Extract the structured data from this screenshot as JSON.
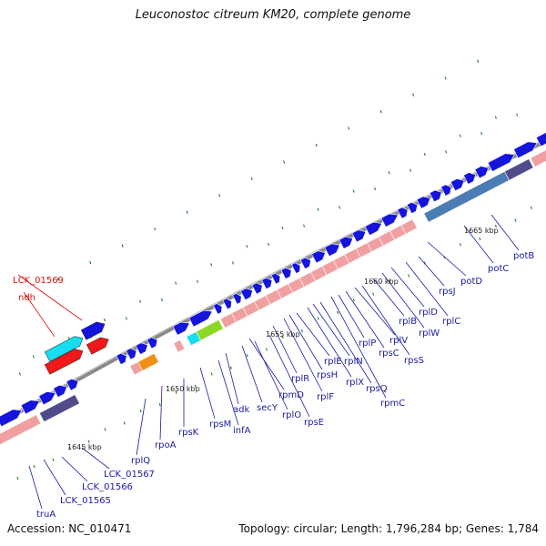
{
  "title": "Leuconostoc citreum KM20, complete genome",
  "accession": "Accession: NC_010471",
  "topology": "Topology: circular; Length: 1,796,284 bp; Genes: 1,784",
  "colors": {
    "backbone": "#8a8a8a",
    "forward_gene": "#1414dc",
    "reverse_gene": "#f0a0a0",
    "operon_dark": "#504c8c",
    "operon_blue": "#4c7cb4",
    "highlight_cyan": "#18dcf0",
    "highlight_red": "#f01818",
    "highlight_green": "#8cd828",
    "highlight_orange": "#f09018",
    "gc_tick": "#2e8b2e",
    "label_blue": "#1a1aa0",
    "label_red": "#dd1111"
  },
  "scale_labels": [
    "1645 kbp",
    "1650 kbp",
    "1655 kbp",
    "1660 kbp",
    "1665 kbp"
  ],
  "gene_labels": [
    {
      "text": "truA",
      "color": "blue"
    },
    {
      "text": "LCK_01565",
      "color": "blue"
    },
    {
      "text": "LCK_01566",
      "color": "blue"
    },
    {
      "text": "LCK_01567",
      "color": "blue"
    },
    {
      "text": "rplQ",
      "color": "blue"
    },
    {
      "text": "rpoA",
      "color": "blue"
    },
    {
      "text": "rpsK",
      "color": "blue"
    },
    {
      "text": "rpsM",
      "color": "blue"
    },
    {
      "text": "infA",
      "color": "blue"
    },
    {
      "text": "adk",
      "color": "blue"
    },
    {
      "text": "secY",
      "color": "blue"
    },
    {
      "text": "rplO",
      "color": "blue"
    },
    {
      "text": "rpmD",
      "color": "blue"
    },
    {
      "text": "rpsE",
      "color": "blue"
    },
    {
      "text": "rplR",
      "color": "blue"
    },
    {
      "text": "rplF",
      "color": "blue"
    },
    {
      "text": "rpsH",
      "color": "blue"
    },
    {
      "text": "rplE",
      "color": "blue"
    },
    {
      "text": "rplX",
      "color": "blue"
    },
    {
      "text": "rplN",
      "color": "blue"
    },
    {
      "text": "rpsQ",
      "color": "blue"
    },
    {
      "text": "rpmC",
      "color": "blue"
    },
    {
      "text": "rplP",
      "color": "blue"
    },
    {
      "text": "rpsC",
      "color": "blue"
    },
    {
      "text": "rplV",
      "color": "blue"
    },
    {
      "text": "rpsS",
      "color": "blue"
    },
    {
      "text": "rplB",
      "color": "blue"
    },
    {
      "text": "rplW",
      "color": "blue"
    },
    {
      "text": "rplD",
      "color": "blue"
    },
    {
      "text": "rplC",
      "color": "blue"
    },
    {
      "text": "rpsJ",
      "color": "blue"
    },
    {
      "text": "potD",
      "color": "blue"
    },
    {
      "text": "potC",
      "color": "blue"
    },
    {
      "text": "potB",
      "color": "blue"
    },
    {
      "text": "LCK_01569",
      "color": "red"
    },
    {
      "text": "ndh",
      "color": "red"
    }
  ]
}
